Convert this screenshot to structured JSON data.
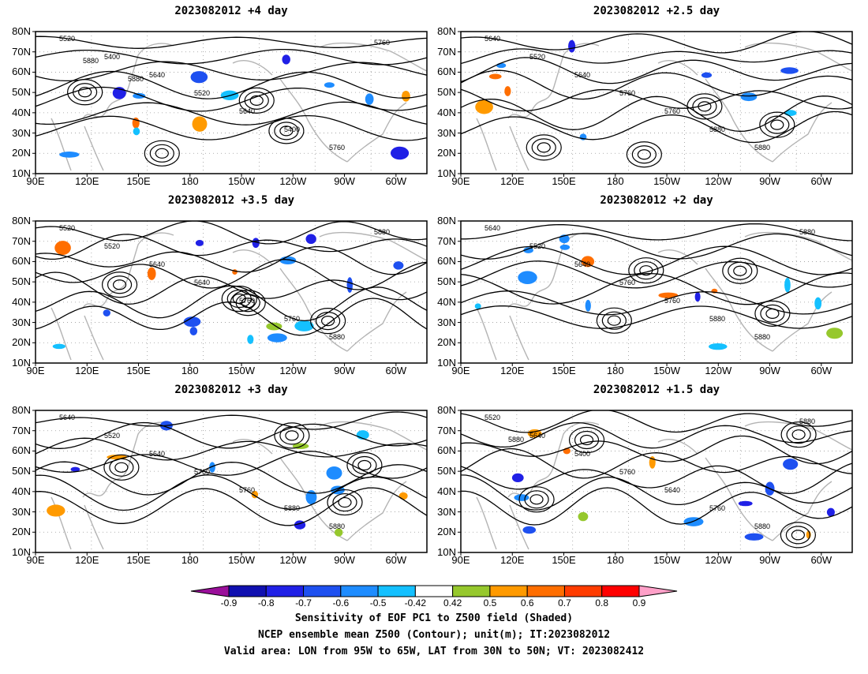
{
  "panels": [
    {
      "title": "2023082012 +4 day",
      "contour_labels": [
        "5520",
        "5400",
        "5640",
        "5520",
        "5640",
        "5400",
        "5760",
        "5760",
        "5880",
        "5880"
      ]
    },
    {
      "title": "2023082012 +2.5 day",
      "contour_labels": [
        "5640",
        "5520",
        "5640",
        "5760",
        "5760",
        "5880",
        "5880"
      ]
    },
    {
      "title": "2023082012 +3.5 day",
      "contour_labels": [
        "5520",
        "5520",
        "5640",
        "5640",
        "5760",
        "5760",
        "5880",
        "5880"
      ]
    },
    {
      "title": "2023082012 +2 day",
      "contour_labels": [
        "5640",
        "5520",
        "5640",
        "5760",
        "5760",
        "5880",
        "5880",
        "5880"
      ]
    },
    {
      "title": "2023082012 +3 day",
      "contour_labels": [
        "5640",
        "5520",
        "5640",
        "5760",
        "5760",
        "5880",
        "5880"
      ]
    },
    {
      "title": "2023082012 +1.5 day",
      "contour_labels": [
        "5520",
        "5640",
        "5400",
        "5760",
        "5640",
        "5760",
        "5880",
        "5880",
        "5880"
      ]
    }
  ],
  "lat_labels": [
    "80N",
    "70N",
    "60N",
    "50N",
    "40N",
    "30N",
    "20N",
    "10N"
  ],
  "lon_labels": [
    "90E",
    "120E",
    "150E",
    "180",
    "150W",
    "120W",
    "90W",
    "60W"
  ],
  "colorbar": {
    "ticks": [
      "-0.9",
      "-0.8",
      "-0.7",
      "-0.6",
      "-0.5",
      "-0.42",
      "0.42",
      "0.5",
      "0.6",
      "0.7",
      "0.8",
      "0.9"
    ],
    "colors": [
      "#9a0f9a",
      "#1010b0",
      "#2020e6",
      "#1e50f0",
      "#1e8cff",
      "#14c0ff",
      "#ffffff",
      "#96c82d",
      "#ff9a00",
      "#ff6e00",
      "#ff3c00",
      "#ff0000",
      "#ffa0c8"
    ]
  },
  "caption": {
    "line1": "Sensitivity of EOF PC1 to Z500 field (Shaded)",
    "line2": "NCEP ensemble mean Z500 (Contour); unit(m); IT:2023082012",
    "line3": "Valid area: LON from 95W to 65W, LAT from 30N to 50N; VT: 2023082412"
  }
}
